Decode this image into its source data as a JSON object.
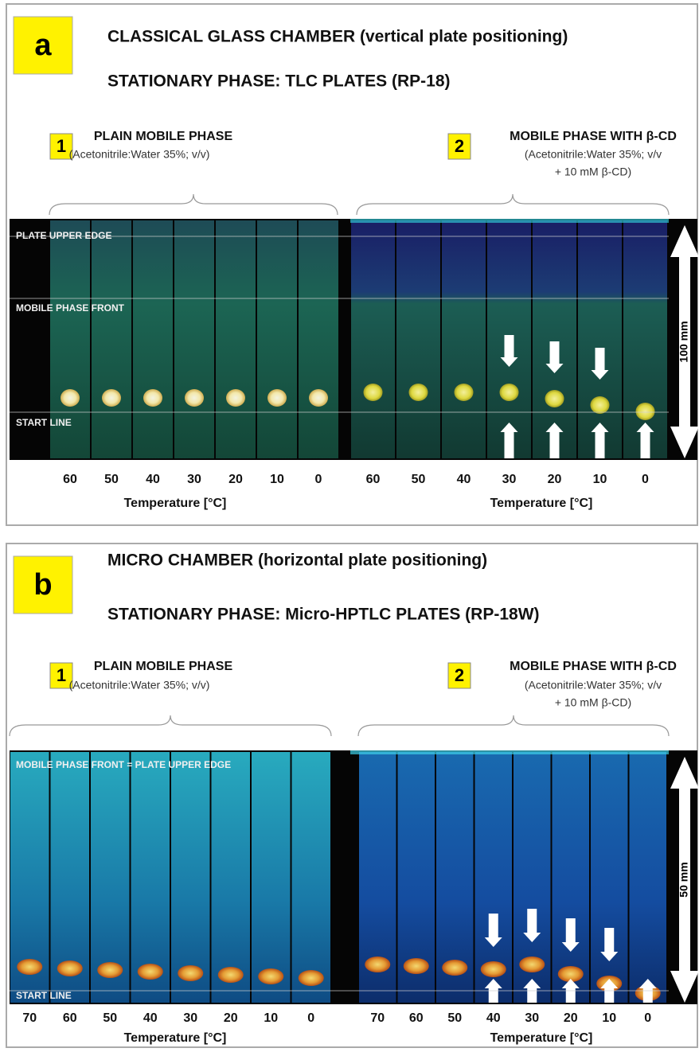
{
  "panels": [
    {
      "letter": "a",
      "title": "CLASSICAL GLASS CHAMBER (vertical plate positioning)",
      "subtitle": "STATIONARY PHASE: TLC PLATES (RP-18)",
      "plate_labels": [
        "PLATE UPPER EDGE",
        "MOBILE PHASE FRONT",
        "START LINE"
      ],
      "scale_label": "100 mm",
      "groups": [
        {
          "number": "1",
          "heading": "PLAIN MOBILE PHASE",
          "description": [
            "(Acetonitrile:Water 35%; v/v)"
          ],
          "temperatures": [
            60,
            50,
            40,
            30,
            20,
            10,
            0
          ],
          "axis_label": "Temperature [°C]"
        },
        {
          "number": "2",
          "heading": "MOBILE PHASE WITH β-CD",
          "description": [
            "(Acetonitrile:Water 35%; v/v",
            "+ 10 mM β-CD)"
          ],
          "temperatures": [
            60,
            50,
            40,
            30,
            20,
            10,
            0
          ],
          "axis_label": "Temperature [°C]"
        }
      ]
    },
    {
      "letter": "b",
      "title": "MICRO CHAMBER (horizontal plate positioning)",
      "subtitle": "STATIONARY PHASE: Micro-HPTLC PLATES (RP-18W)",
      "plate_labels": [
        "MOBILE PHASE FRONT = PLATE UPPER EDGE",
        "START LINE"
      ],
      "scale_label": "50 mm",
      "groups": [
        {
          "number": "1",
          "heading": "PLAIN MOBILE PHASE",
          "description": [
            "(Acetonitrile:Water 35%; v/v)"
          ],
          "temperatures": [
            70,
            60,
            50,
            40,
            30,
            20,
            10,
            0
          ],
          "axis_label": "Temperature [°C]"
        },
        {
          "number": "2",
          "heading": "MOBILE PHASE WITH β-CD",
          "description": [
            "(Acetonitrile:Water 35%; v/v",
            "+ 10 mM β-CD)"
          ],
          "temperatures": [
            70,
            60,
            50,
            40,
            30,
            20,
            10,
            0
          ],
          "axis_label": "Temperature [°C]"
        }
      ]
    }
  ]
}
